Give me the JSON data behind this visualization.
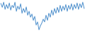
{
  "values": [
    85,
    75,
    88,
    70,
    82,
    72,
    86,
    68,
    80,
    74,
    88,
    65,
    78,
    70,
    84,
    60,
    72,
    62,
    76,
    55,
    65,
    50,
    58,
    42,
    52,
    30,
    38,
    18,
    28,
    35,
    45,
    38,
    55,
    42,
    60,
    50,
    68,
    55,
    72,
    60,
    75,
    62,
    80,
    65,
    78,
    68,
    82,
    65,
    80,
    70,
    84,
    68,
    82,
    72,
    86,
    70,
    84,
    74,
    88,
    72
  ],
  "line_color": "#4d8fcc",
  "linewidth": 0.7,
  "background_color": "#ffffff"
}
